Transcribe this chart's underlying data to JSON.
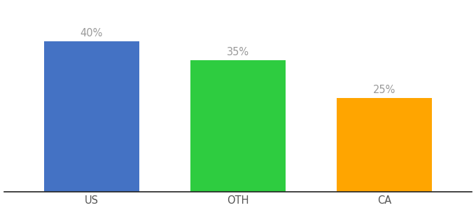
{
  "categories": [
    "US",
    "OTH",
    "CA"
  ],
  "values": [
    40,
    35,
    25
  ],
  "bar_colors": [
    "#4472C4",
    "#2ECC40",
    "#FFA500"
  ],
  "label_color": "#999999",
  "labels": [
    "40%",
    "35%",
    "25%"
  ],
  "ylim": [
    0,
    50
  ],
  "background_color": "#ffffff",
  "bar_width": 0.65,
  "label_fontsize": 10.5,
  "tick_fontsize": 10.5,
  "tick_color": "#555555",
  "spine_color": "#222222",
  "fig_width": 6.8,
  "fig_height": 3.0,
  "dpi": 100
}
